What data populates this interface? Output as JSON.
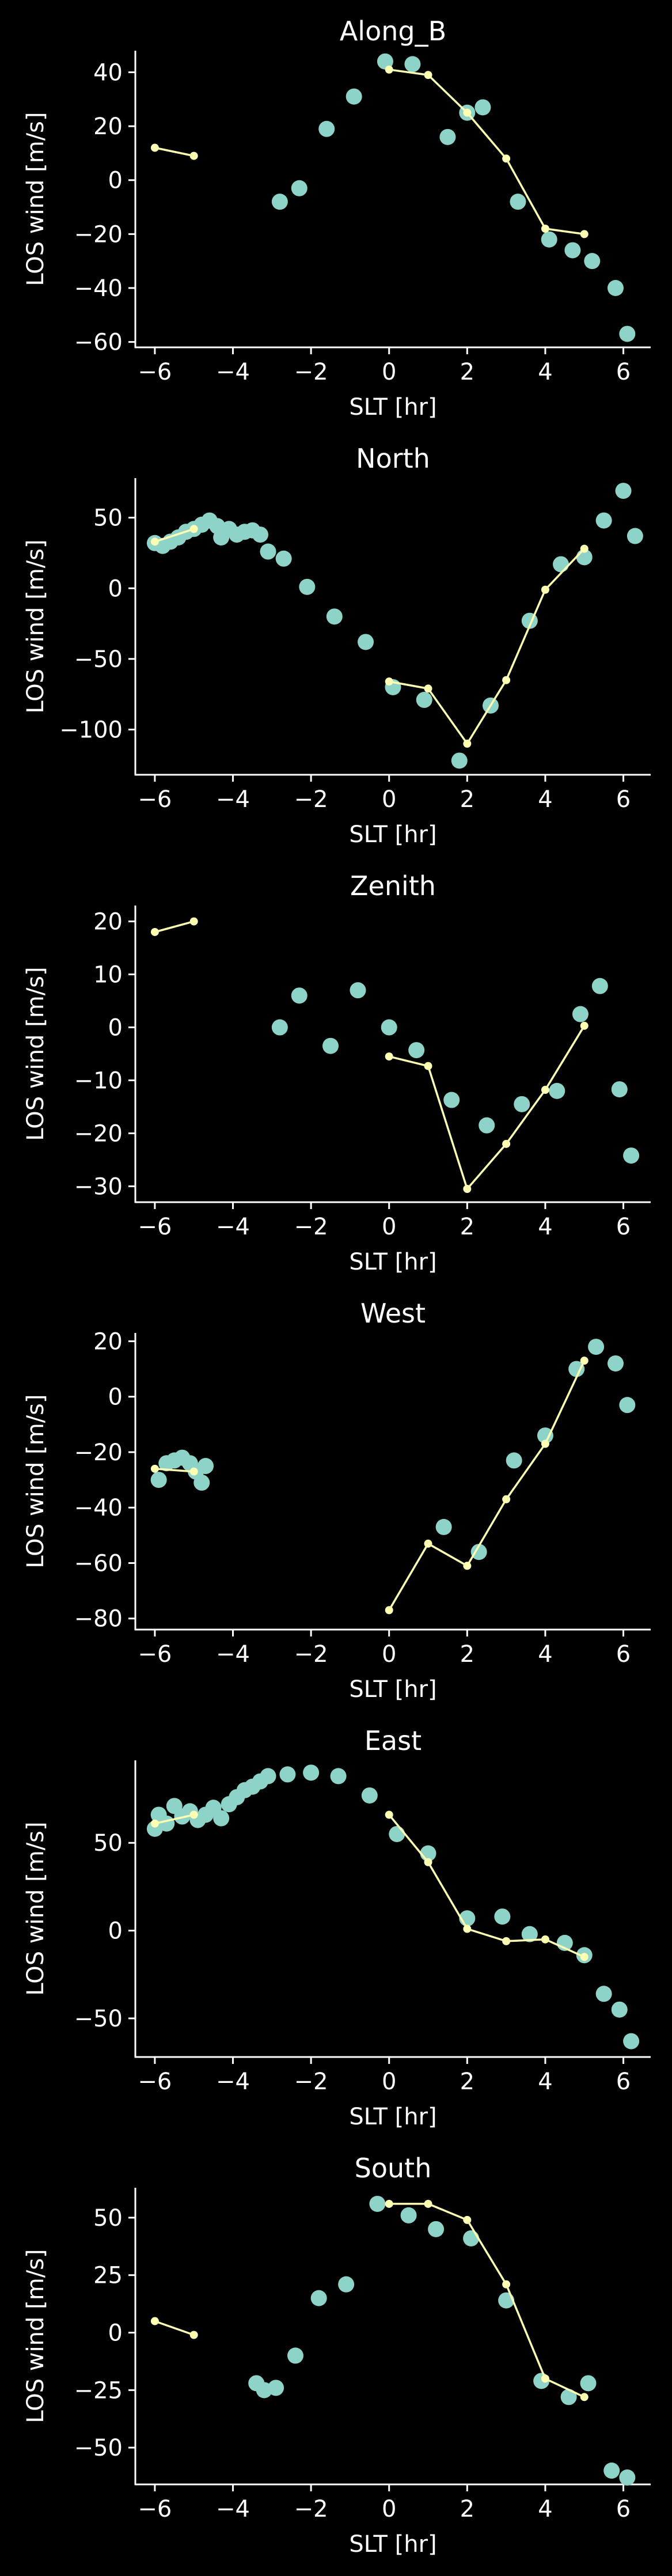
{
  "figure": {
    "background": "#000000",
    "foreground": "#ffffff"
  },
  "styles": {
    "scatter_color": "#8dd3c7",
    "line_color": "#ffffb3"
  },
  "chart_data": [
    {
      "type": "scatter",
      "title": "Along_B",
      "xlabel": "SLT [hr]",
      "ylabel": "LOS wind [m/s]",
      "xlim": [
        -6.5,
        6.7
      ],
      "ylim": [
        -62,
        48
      ],
      "xticks": [
        -6,
        -4,
        -2,
        0,
        2,
        4,
        6
      ],
      "yticks": [
        -60,
        -40,
        -20,
        0,
        20,
        40
      ],
      "scatter": [
        [
          -2.8,
          -8
        ],
        [
          -2.3,
          -3
        ],
        [
          -1.6,
          19
        ],
        [
          -0.9,
          31
        ],
        [
          -0.1,
          44
        ],
        [
          0.6,
          43
        ],
        [
          1.5,
          16
        ],
        [
          2.0,
          25
        ],
        [
          2.4,
          27
        ],
        [
          3.3,
          -8
        ],
        [
          4.1,
          -22
        ],
        [
          4.7,
          -26
        ],
        [
          5.2,
          -30
        ],
        [
          5.8,
          -40
        ],
        [
          6.1,
          -57
        ]
      ],
      "lines": [
        [
          [
            -6,
            12
          ],
          [
            -5,
            9
          ]
        ],
        [
          [
            0,
            41
          ],
          [
            1,
            39
          ],
          [
            2,
            25
          ],
          [
            3,
            8
          ],
          [
            4,
            -18
          ],
          [
            5,
            -20
          ]
        ]
      ]
    },
    {
      "type": "scatter",
      "title": "North",
      "xlabel": "SLT [hr]",
      "ylabel": "LOS wind [m/s]",
      "xlim": [
        -6.5,
        6.7
      ],
      "ylim": [
        -132,
        78
      ],
      "xticks": [
        -6,
        -4,
        -2,
        0,
        2,
        4,
        6
      ],
      "yticks": [
        -100,
        -50,
        0,
        50
      ],
      "scatter": [
        [
          -6,
          32
        ],
        [
          -5.8,
          30
        ],
        [
          -5.6,
          33
        ],
        [
          -5.4,
          36
        ],
        [
          -5.2,
          40
        ],
        [
          -5,
          42
        ],
        [
          -4.8,
          45
        ],
        [
          -4.6,
          48
        ],
        [
          -4.4,
          44
        ],
        [
          -4.3,
          36
        ],
        [
          -4.1,
          42
        ],
        [
          -3.9,
          38
        ],
        [
          -3.7,
          40
        ],
        [
          -3.5,
          41
        ],
        [
          -3.3,
          38
        ],
        [
          -3.1,
          26
        ],
        [
          -2.7,
          21
        ],
        [
          -2.1,
          1
        ],
        [
          -1.4,
          -20
        ],
        [
          -0.6,
          -38
        ],
        [
          0.1,
          -70
        ],
        [
          0.9,
          -79
        ],
        [
          1.8,
          -122
        ],
        [
          2.6,
          -83
        ],
        [
          3.6,
          -23
        ],
        [
          4.4,
          17
        ],
        [
          5.0,
          22
        ],
        [
          5.5,
          48
        ],
        [
          6.0,
          69
        ],
        [
          6.3,
          37
        ]
      ],
      "lines": [
        [
          [
            -6,
            33
          ],
          [
            -5,
            42
          ]
        ],
        [
          [
            0,
            -66
          ],
          [
            1,
            -71
          ],
          [
            2,
            -110
          ],
          [
            3,
            -65
          ],
          [
            4,
            -1
          ],
          [
            5,
            28
          ]
        ]
      ]
    },
    {
      "type": "scatter",
      "title": "Zenith",
      "xlabel": "SLT [hr]",
      "ylabel": "LOS wind [m/s]",
      "xlim": [
        -6.5,
        6.7
      ],
      "ylim": [
        -33,
        23
      ],
      "xticks": [
        -6,
        -4,
        -2,
        0,
        2,
        4,
        6
      ],
      "yticks": [
        -30,
        -20,
        -10,
        0,
        10,
        20
      ],
      "scatter": [
        [
          -2.8,
          0
        ],
        [
          -2.3,
          6
        ],
        [
          -1.5,
          -3.5
        ],
        [
          -0.8,
          7
        ],
        [
          0,
          0
        ],
        [
          0.7,
          -4.3
        ],
        [
          1.6,
          -13.7
        ],
        [
          2.5,
          -18.5
        ],
        [
          3.4,
          -14.5
        ],
        [
          4.3,
          -12
        ],
        [
          4.9,
          2.5
        ],
        [
          5.4,
          7.8
        ],
        [
          5.9,
          -11.7
        ],
        [
          6.2,
          -24.2
        ]
      ],
      "lines": [
        [
          [
            -6,
            18
          ],
          [
            -5,
            20
          ]
        ],
        [
          [
            0,
            -5.5
          ],
          [
            1,
            -7.3
          ],
          [
            2,
            -30.5
          ],
          [
            3,
            -22
          ],
          [
            4,
            -11.8
          ],
          [
            5,
            0.3
          ]
        ]
      ]
    },
    {
      "type": "scatter",
      "title": "West",
      "xlabel": "SLT [hr]",
      "ylabel": "LOS wind [m/s]",
      "xlim": [
        -6.5,
        6.7
      ],
      "ylim": [
        -84,
        23
      ],
      "xticks": [
        -6,
        -4,
        -2,
        0,
        2,
        4,
        6
      ],
      "yticks": [
        -80,
        -60,
        -40,
        -20,
        0,
        20
      ],
      "scatter": [
        [
          -5.9,
          -30
        ],
        [
          -5.7,
          -24
        ],
        [
          -5.5,
          -23
        ],
        [
          -5.3,
          -22
        ],
        [
          -5.1,
          -24
        ],
        [
          -4.95,
          -27
        ],
        [
          -4.8,
          -31
        ],
        [
          -4.7,
          -25
        ],
        [
          1.4,
          -47
        ],
        [
          2.3,
          -56
        ],
        [
          3.2,
          -23
        ],
        [
          4.0,
          -14
        ],
        [
          4.8,
          10
        ],
        [
          5.3,
          18
        ],
        [
          5.8,
          12
        ],
        [
          6.1,
          -3
        ]
      ],
      "lines": [
        [
          [
            -6,
            -26
          ],
          [
            -5,
            -27
          ]
        ],
        [
          [
            0,
            -77
          ],
          [
            1,
            -53
          ],
          [
            2,
            -61
          ],
          [
            3,
            -37
          ],
          [
            4,
            -17
          ],
          [
            5,
            13
          ]
        ]
      ]
    },
    {
      "type": "scatter",
      "title": "East",
      "xlabel": "SLT [hr]",
      "ylabel": "LOS wind [m/s]",
      "xlim": [
        -6.5,
        6.7
      ],
      "ylim": [
        -72,
        97
      ],
      "xticks": [
        -6,
        -4,
        -2,
        0,
        2,
        4,
        6
      ],
      "yticks": [
        -50,
        0,
        50
      ],
      "scatter": [
        [
          -6,
          58
        ],
        [
          -5.9,
          66
        ],
        [
          -5.7,
          61
        ],
        [
          -5.5,
          71
        ],
        [
          -5.3,
          65
        ],
        [
          -5.1,
          68
        ],
        [
          -4.9,
          63
        ],
        [
          -4.7,
          66
        ],
        [
          -4.5,
          70
        ],
        [
          -4.3,
          64
        ],
        [
          -4.1,
          72
        ],
        [
          -3.9,
          76
        ],
        [
          -3.7,
          80
        ],
        [
          -3.5,
          82
        ],
        [
          -3.3,
          85
        ],
        [
          -3.1,
          88
        ],
        [
          -2.6,
          89
        ],
        [
          -2.0,
          90
        ],
        [
          -1.3,
          88
        ],
        [
          -0.5,
          77
        ],
        [
          0.2,
          55
        ],
        [
          1.0,
          44
        ],
        [
          2.0,
          7
        ],
        [
          2.9,
          8
        ],
        [
          3.6,
          -2
        ],
        [
          4.5,
          -7
        ],
        [
          5.0,
          -14
        ],
        [
          5.5,
          -36
        ],
        [
          5.9,
          -45
        ],
        [
          6.2,
          -63
        ]
      ],
      "lines": [
        [
          [
            -6,
            61
          ],
          [
            -5,
            66
          ]
        ],
        [
          [
            0,
            66
          ],
          [
            1,
            39
          ],
          [
            2,
            1
          ],
          [
            3,
            -6
          ],
          [
            4,
            -5
          ],
          [
            5,
            -15
          ]
        ]
      ]
    },
    {
      "type": "scatter",
      "title": "South",
      "xlabel": "SLT [hr]",
      "ylabel": "LOS wind [m/s]",
      "xlim": [
        -6.5,
        6.7
      ],
      "ylim": [
        -66,
        63
      ],
      "xticks": [
        -6,
        -4,
        -2,
        0,
        2,
        4,
        6
      ],
      "yticks": [
        -50,
        -25,
        0,
        25,
        50
      ],
      "scatter": [
        [
          -3.4,
          -22
        ],
        [
          -3.2,
          -25
        ],
        [
          -2.9,
          -24
        ],
        [
          -2.4,
          -10
        ],
        [
          -1.8,
          15
        ],
        [
          -1.1,
          21
        ],
        [
          -0.3,
          56
        ],
        [
          0.5,
          51
        ],
        [
          1.2,
          45
        ],
        [
          2.1,
          41
        ],
        [
          3.0,
          14
        ],
        [
          3.9,
          -21
        ],
        [
          4.6,
          -28
        ],
        [
          5.1,
          -22
        ],
        [
          5.7,
          -60
        ],
        [
          6.1,
          -63
        ]
      ],
      "lines": [
        [
          [
            -6,
            5
          ],
          [
            -5,
            -1
          ]
        ],
        [
          [
            0,
            56
          ],
          [
            1,
            56
          ],
          [
            2,
            49
          ],
          [
            3,
            21
          ],
          [
            4,
            -20
          ],
          [
            5,
            -28
          ]
        ]
      ]
    }
  ]
}
